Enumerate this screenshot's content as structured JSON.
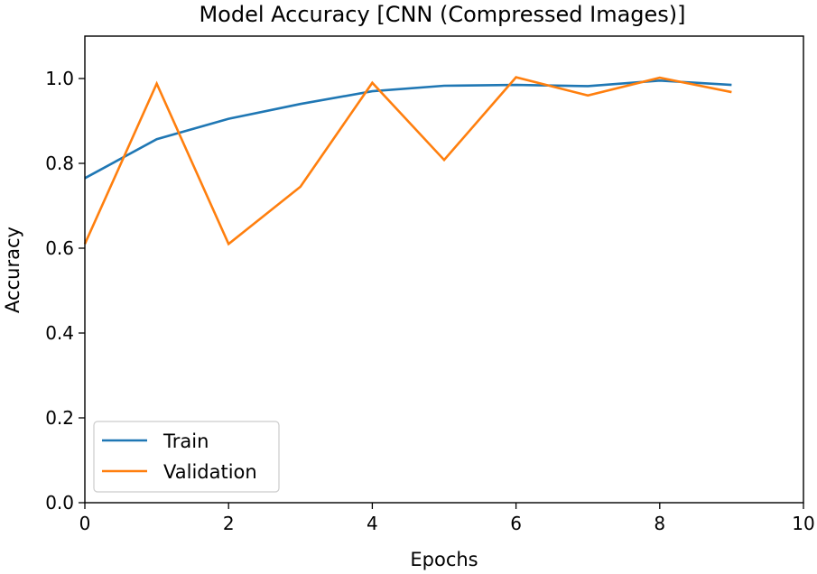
{
  "chart_data": {
    "type": "line",
    "title": "Model Accuracy [CNN (Compressed Images)]",
    "xlabel": "Epochs",
    "ylabel": "Accuracy",
    "xlim": [
      0,
      10
    ],
    "ylim": [
      0.0,
      1.1
    ],
    "xticks": [
      "0",
      "2",
      "4",
      "6",
      "8",
      "10"
    ],
    "yticks": [
      "0.0",
      "0.2",
      "0.4",
      "0.6",
      "0.8",
      "1.0"
    ],
    "grid": false,
    "legend_position": "lower-left",
    "x": [
      0,
      1,
      2,
      3,
      4,
      5,
      6,
      7,
      8,
      9
    ],
    "series": [
      {
        "name": "Train",
        "color": "#1f77b4",
        "values": [
          0.765,
          0.857,
          0.905,
          0.94,
          0.97,
          0.983,
          0.985,
          0.982,
          0.995,
          0.985
        ]
      },
      {
        "name": "Validation",
        "color": "#ff7f0e",
        "values": [
          0.61,
          0.988,
          0.61,
          0.745,
          0.99,
          0.808,
          1.003,
          0.96,
          1.002,
          0.968
        ]
      }
    ]
  }
}
